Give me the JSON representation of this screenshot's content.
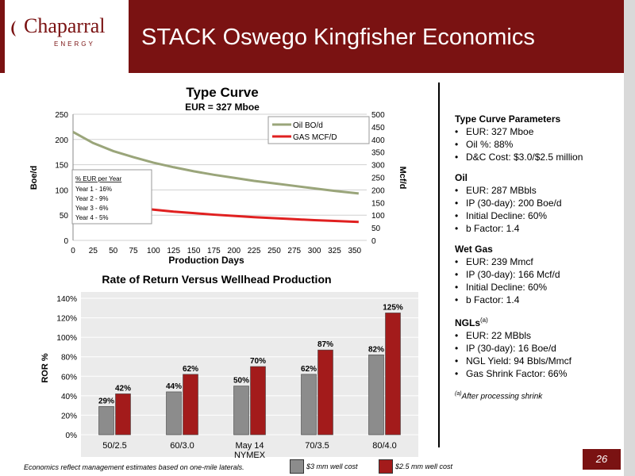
{
  "header": {
    "logo_text": "Chaparral",
    "logo_sub": "ENERGY",
    "title": "STACK Oswego Kingfisher Economics"
  },
  "type_curve": {
    "title": "Type Curve",
    "subtitle": "EUR = 327 Mboe",
    "box_title": "% EUR per Year",
    "box_lines": [
      "Year 1 - 16%",
      "Year 2 - 9%",
      "Year 3 - 6%",
      "Year 4 - 5%"
    ]
  },
  "ror": {
    "title": "Rate of Return Versus Wellhead Production"
  },
  "params": {
    "type_curve_head": "Type Curve Parameters",
    "type_curve_items": [
      "EUR: 327 Mboe",
      "Oil %: 88%",
      "D&C Cost: $3.0/$2.5 million"
    ],
    "oil_head": "Oil",
    "oil_items": [
      "EUR: 287 MBbls",
      "IP (30-day): 200 Boe/d",
      "Initial Decline: 60%",
      "b Factor: 1.4"
    ],
    "gas_head": "Wet Gas",
    "gas_items": [
      "EUR: 239 Mmcf",
      "IP (30-day): 166 Mcf/d",
      "Initial Decline: 60%",
      "b Factor: 1.4"
    ],
    "ngl_head": "NGLs",
    "ngl_sup": "(a)",
    "ngl_items": [
      "EUR: 22 MBbls",
      "IP (30-day): 16 Boe/d",
      "NGL Yield: 94 Bbls/Mmcf",
      "Gas Shrink Factor: 66%"
    ],
    "footnote_sup": "(a)",
    "footnote": "After processing shrink"
  },
  "footer": {
    "note": "Economics reflect management estimates based on one-mile laterals.",
    "page": "26",
    "legend1": "$3 mm well cost",
    "legend2": "$2.5 mm well cost"
  },
  "colors": {
    "brand": "#7a1212",
    "oil_line": "#9aa57a",
    "gas_line": "#e02020",
    "bar_grey": "#8c8c8c",
    "bar_red": "#a31b1b"
  },
  "chart_data": [
    {
      "type": "line",
      "title": "Type Curve",
      "subtitle": "EUR = 327 Mboe",
      "xlabel": "Production Days",
      "ylabel": "Boe/d",
      "y2label": "Mcf/d",
      "xlim": [
        0,
        365
      ],
      "ylim": [
        0,
        250
      ],
      "y2lim": [
        0,
        500
      ],
      "xticks": [
        "0",
        "25",
        "50",
        "75",
        "100",
        "125",
        "150",
        "175",
        "200",
        "225",
        "250",
        "275",
        "300",
        "325",
        "350"
      ],
      "yticks": [
        "0",
        "50",
        "100",
        "150",
        "200",
        "250"
      ],
      "y2ticks": [
        "0",
        "50",
        "100",
        "150",
        "200",
        "250",
        "300",
        "350",
        "400",
        "450",
        "500"
      ],
      "legend_position": "top-right",
      "series": [
        {
          "name": "Oil BO/d",
          "axis": "left",
          "color": "#9aa57a",
          "x": [
            0,
            25,
            50,
            75,
            100,
            125,
            150,
            175,
            200,
            225,
            250,
            275,
            300,
            325,
            355
          ],
          "y": [
            215,
            193,
            177,
            165,
            154,
            145,
            137,
            130,
            124,
            118,
            113,
            108,
            103,
            98,
            93
          ]
        },
        {
          "name": "GAS MCF/D",
          "axis": "right",
          "color": "#e02020",
          "x": [
            0,
            25,
            50,
            75,
            100,
            125,
            150,
            175,
            200,
            225,
            250,
            275,
            300,
            325,
            355
          ],
          "y": [
            176,
            156,
            142,
            131,
            122,
            114,
            108,
            102,
            97,
            92,
            88,
            84,
            80,
            77,
            73
          ]
        }
      ]
    },
    {
      "type": "bar",
      "title": "Rate of Return Versus Wellhead Production",
      "ylabel": "ROR %",
      "ylim": [
        0,
        140
      ],
      "yticks": [
        "0%",
        "20%",
        "40%",
        "60%",
        "80%",
        "100%",
        "120%",
        "140%"
      ],
      "categories": [
        "50/2.5",
        "60/3.0",
        "May 14\nNYMEX",
        "70/3.5",
        "80/4.0"
      ],
      "series": [
        {
          "name": "$3 mm well cost",
          "color": "#8c8c8c",
          "values": [
            29,
            44,
            50,
            62,
            82
          ],
          "labels": [
            "29%",
            "44%",
            "50%",
            "62%",
            "82%"
          ]
        },
        {
          "name": "$2.5 mm well cost",
          "color": "#a31b1b",
          "values": [
            42,
            62,
            70,
            87,
            125
          ],
          "labels": [
            "42%",
            "62%",
            "70%",
            "87%",
            "125%"
          ]
        }
      ]
    }
  ]
}
